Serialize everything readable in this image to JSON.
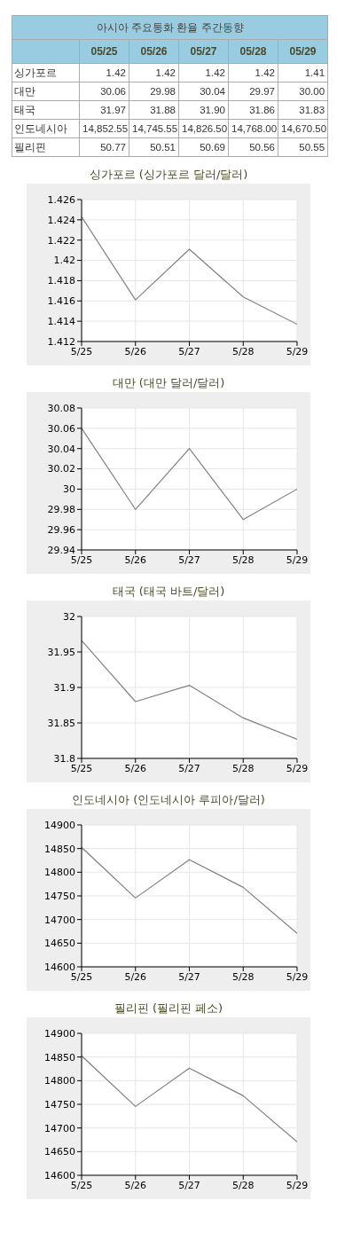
{
  "chart_data": [
    {
      "type": "other",
      "title": "아시아 주요통화 환율 주간동향",
      "categories": [
        "05/25",
        "05/26",
        "05/27",
        "05/28",
        "05/29"
      ],
      "y_categories": [
        "싱가포르",
        "대만",
        "태국",
        "인도네시아",
        "필리핀"
      ],
      "cell_labels": [
        [
          "1.42",
          "1.42",
          "1.42",
          "1.42",
          "1.41"
        ],
        [
          "30.06",
          "29.98",
          "30.04",
          "29.97",
          "30.00"
        ],
        [
          "31.97",
          "31.88",
          "31.90",
          "31.86",
          "31.83"
        ],
        [
          "14,852.55",
          "14,745.55",
          "14,826.50",
          "14,768.00",
          "14,670.50"
        ],
        [
          "50.77",
          "50.51",
          "50.69",
          "50.56",
          "50.55"
        ]
      ]
    },
    {
      "type": "line",
      "title": "싱가포르 (싱가포르 달러/달러)",
      "categories": [
        "5/25",
        "5/26",
        "5/27",
        "5/28",
        "5/29"
      ],
      "values": [
        1.4243,
        1.4161,
        1.4211,
        1.4164,
        1.4137
      ],
      "color": "#808080",
      "ylim": [
        1.412,
        1.426
      ],
      "yticks": [
        1.412,
        1.414,
        1.416,
        1.418,
        1.42,
        1.422,
        1.424,
        1.426
      ],
      "grid": true,
      "marker": "none"
    },
    {
      "type": "line",
      "title": "대만 (대만 달러/달러)",
      "categories": [
        "5/25",
        "5/26",
        "5/27",
        "5/28",
        "5/29"
      ],
      "values": [
        30.06,
        29.98,
        30.04,
        29.97,
        30.0
      ],
      "color": "#808080",
      "ylim": [
        29.94,
        30.08
      ],
      "yticks": [
        29.94,
        29.96,
        29.98,
        30,
        30.02,
        30.04,
        30.06,
        30.08
      ],
      "grid": true,
      "marker": "none"
    },
    {
      "type": "line",
      "title": "태국 (태국 바트/달러)",
      "categories": [
        "5/25",
        "5/26",
        "5/27",
        "5/28",
        "5/29"
      ],
      "values": [
        31.966,
        31.88,
        31.903,
        31.857,
        31.827
      ],
      "color": "#808080",
      "ylim": [
        31.8,
        32
      ],
      "yticks": [
        31.8,
        31.85,
        31.9,
        31.95,
        32
      ],
      "grid": true,
      "marker": "none"
    },
    {
      "type": "line",
      "title": "인도네시아 (인도네시아 루피아/달러)",
      "categories": [
        "5/25",
        "5/26",
        "5/27",
        "5/28",
        "5/29"
      ],
      "values": [
        14852.55,
        14745.55,
        14826.5,
        14768,
        14670.5
      ],
      "color": "#808080",
      "ylim": [
        14600,
        14900
      ],
      "yticks": [
        14600,
        14650,
        14700,
        14750,
        14800,
        14850,
        14900
      ],
      "grid": true,
      "marker": "none"
    },
    {
      "type": "line",
      "title": "필리핀 (필리핀 페소)",
      "categories": [
        "5/25",
        "5/26",
        "5/27",
        "5/28",
        "5/29"
      ],
      "values": [
        14852.55,
        14745.55,
        14826.5,
        14768,
        14670.5
      ],
      "color": "#808080",
      "ylim": [
        14600,
        14900
      ],
      "yticks": [
        14600,
        14650,
        14700,
        14750,
        14800,
        14850,
        14900
      ],
      "grid": true,
      "marker": "none"
    }
  ]
}
